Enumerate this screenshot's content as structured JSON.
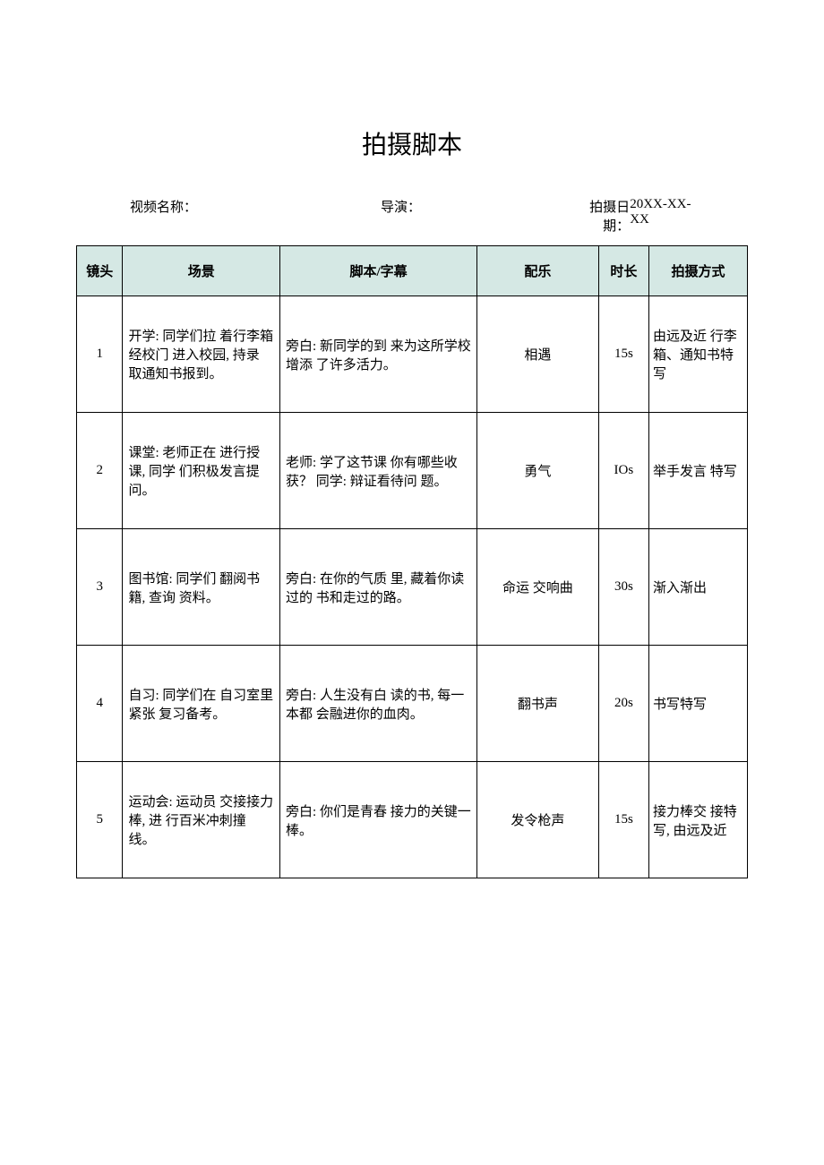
{
  "title": "拍摄脚本",
  "meta": {
    "video_name_label": "视频名称：",
    "video_name_value": "",
    "director_label": "导演：",
    "director_value": "",
    "date_label": "拍摄日期：",
    "date_value": "20XX-XX-XX"
  },
  "table": {
    "columns": [
      "镜头",
      "场景",
      "脚本/字幕",
      "配乐",
      "时长",
      "拍摄方式"
    ],
    "header_bg": "#d5e8e4",
    "border_color": "#000000",
    "rows": [
      {
        "shot": "1",
        "scene": "开学: 同学们拉 着行李箱经校门 进入校园, 持录 取通知书报到。",
        "script": "旁白: 新同学的到 来为这所学校增添    了许多活力。",
        "music": "相遇",
        "duration": "15s",
        "method": "由远及近 行李箱、通知书特 写"
      },
      {
        "shot": "2",
        "scene": "课堂: 老师正在 进行授课, 同学 们积极发言提 问。",
        "script": "老师: 学了这节课 你有哪些收获？   同学: 辩证看待问 题。",
        "music": "勇气",
        "duration": "IOs",
        "method": "举手发言 特写"
      },
      {
        "shot": "3",
        "scene": "图书馆: 同学们 翻阅书籍, 查询 资料。",
        "script": "旁白: 在你的气质 里, 藏着你读过的    书和走过的路。",
        "music": "命运 交响曲",
        "duration": "30s",
        "method": "渐入渐出"
      },
      {
        "shot": "4",
        "scene": "自习: 同学们在 自习室里紧张    复习备考。",
        "script": "旁白: 人生没有白 读的书, 每一本都 会融进你的血肉。",
        "music": "翻书声",
        "duration": "20s",
        "method": "书写特写"
      },
      {
        "shot": "5",
        "scene": "运动会: 运动员 交接接力棒, 进 行百米冲刺撞 线。",
        "script": "旁白: 你们是青春 接力的关键一棒。",
        "music": "发令枪声",
        "duration": "15s",
        "method": "接力棒交 接特写, 由远及近"
      }
    ]
  }
}
